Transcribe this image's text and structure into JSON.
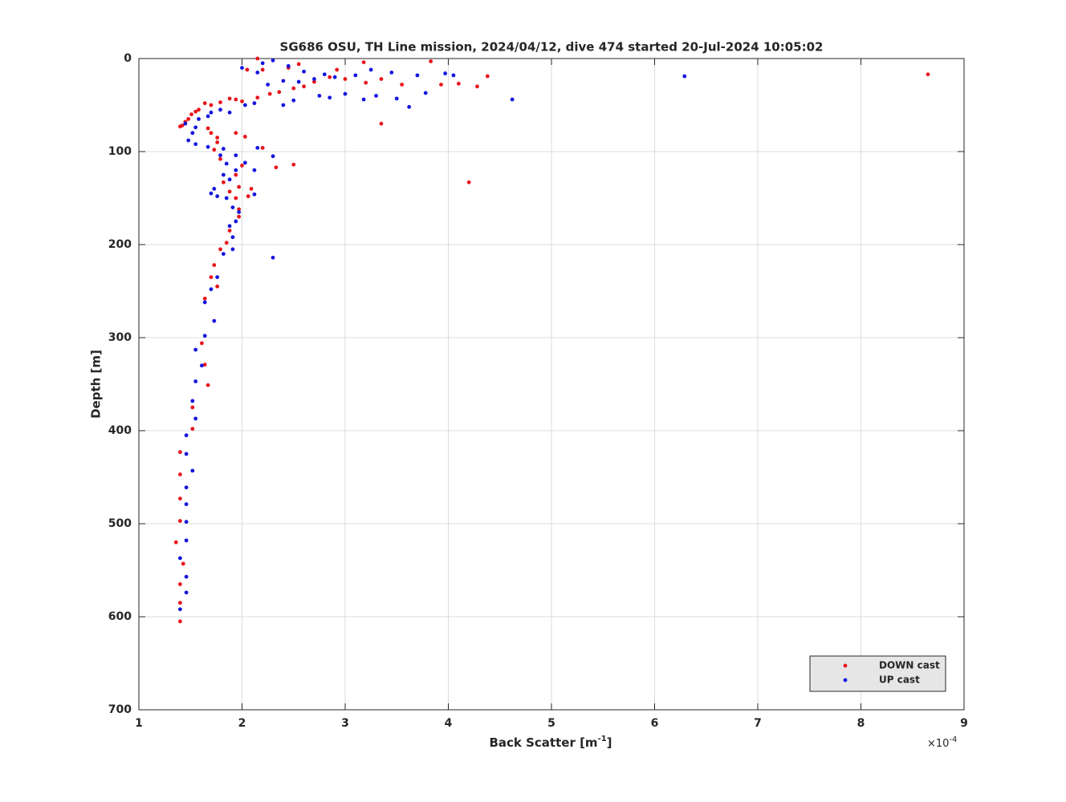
{
  "chart_data": {
    "type": "scatter",
    "title": "SG686 OSU, TH Line mission, 2024/04/12, dive 474 started 20-Jul-2024 10:05:02",
    "xlabel": [
      "Back Scatter [m",
      "-1",
      "]"
    ],
    "x_multiplier": [
      "×10",
      "-4"
    ],
    "ylabel": "Depth [m]",
    "xlim": [
      1,
      9
    ],
    "xticks": [
      1,
      2,
      3,
      4,
      5,
      6,
      7,
      8,
      9
    ],
    "ylim": [
      0,
      700
    ],
    "yticks": [
      0,
      100,
      200,
      300,
      400,
      500,
      600,
      700
    ],
    "y_reversed": true,
    "grid": true,
    "legend": "lower right",
    "series": [
      {
        "name": "DOWN cast",
        "color": "#e8141a",
        "x": [
          1.4,
          1.4,
          1.4,
          1.43,
          1.36,
          1.4,
          1.4,
          1.4,
          1.4,
          1.52,
          1.52,
          1.67,
          1.64,
          1.61,
          1.64,
          1.76,
          1.7,
          1.73,
          1.79,
          1.85,
          1.88,
          1.97,
          1.97,
          1.94,
          2.06,
          2.09,
          1.97,
          1.88,
          1.82,
          1.94,
          2.0,
          1.79,
          2.33,
          2.5,
          4.2,
          2.2,
          2.03,
          1.94,
          1.76,
          1.73,
          1.7,
          1.76,
          1.67,
          1.42,
          1.4,
          1.45,
          1.48,
          1.51,
          1.55,
          1.58,
          1.64,
          1.7,
          1.79,
          1.88,
          1.94,
          2.0,
          2.15,
          2.27,
          2.36,
          2.5,
          2.6,
          2.7,
          2.85,
          3.0,
          3.2,
          3.35,
          3.55,
          3.93,
          4.1,
          4.28,
          4.38,
          3.83,
          3.18,
          2.92,
          2.45,
          2.2,
          2.05,
          8.65,
          3.35,
          2.15,
          2.55
        ],
        "values": [
          605,
          585,
          565,
          543,
          520,
          497,
          473,
          447,
          423,
          398,
          375,
          351,
          329,
          306,
          258,
          245,
          235,
          222,
          205,
          198,
          185,
          170,
          162,
          150,
          148,
          140,
          138,
          143,
          133,
          125,
          115,
          108,
          117,
          114,
          133,
          96,
          84,
          80,
          90,
          98,
          80,
          85,
          75,
          72,
          73,
          68,
          65,
          60,
          57,
          55,
          48,
          50,
          47,
          43,
          44,
          46,
          42,
          38,
          36,
          32,
          30,
          25,
          20,
          22,
          26,
          22,
          28,
          28,
          27,
          30,
          19,
          3,
          4,
          12,
          10,
          12,
          12,
          17,
          70,
          0,
          6
        ]
      },
      {
        "name": "UP cast",
        "color": "#1414e0",
        "x": [
          1.4,
          1.46,
          1.46,
          1.4,
          1.46,
          1.46,
          1.46,
          1.46,
          1.52,
          1.46,
          1.46,
          1.55,
          1.52,
          1.55,
          1.61,
          1.55,
          1.64,
          1.73,
          1.64,
          1.7,
          1.76,
          1.82,
          1.91,
          1.91,
          1.88,
          1.94,
          1.97,
          1.91,
          1.85,
          1.76,
          1.73,
          1.7,
          2.12,
          1.88,
          1.82,
          1.94,
          2.12,
          1.85,
          2.03,
          1.79,
          2.3,
          2.15,
          1.94,
          1.82,
          1.67,
          1.55,
          1.48,
          1.52,
          1.55,
          1.45,
          1.58,
          1.67,
          1.7,
          1.79,
          1.88,
          2.03,
          2.12,
          2.3,
          2.4,
          2.5,
          2.75,
          2.85,
          3.0,
          3.18,
          3.3,
          3.5,
          3.62,
          3.78,
          4.62,
          3.7,
          3.97,
          4.05,
          3.45,
          3.1,
          2.9,
          2.7,
          2.55,
          2.4,
          2.25,
          2.2,
          2.3,
          2.45,
          2.6,
          2.8,
          6.29,
          3.25,
          2.15,
          2.0
        ],
        "values": [
          592,
          574,
          557,
          537,
          518,
          498,
          479,
          461,
          443,
          425,
          405,
          387,
          368,
          347,
          330,
          313,
          298,
          282,
          262,
          248,
          235,
          210,
          205,
          192,
          180,
          175,
          165,
          160,
          150,
          148,
          140,
          145,
          146,
          130,
          125,
          120,
          120,
          113,
          112,
          104,
          105,
          96,
          104,
          97,
          95,
          92,
          88,
          80,
          74,
          70,
          65,
          62,
          58,
          55,
          58,
          50,
          48,
          214,
          50,
          45,
          40,
          42,
          38,
          44,
          40,
          43,
          52,
          37,
          44,
          18,
          16,
          18,
          15,
          18,
          20,
          22,
          25,
          24,
          28,
          5,
          2,
          8,
          14,
          17,
          19,
          12,
          15,
          10
        ]
      }
    ]
  }
}
